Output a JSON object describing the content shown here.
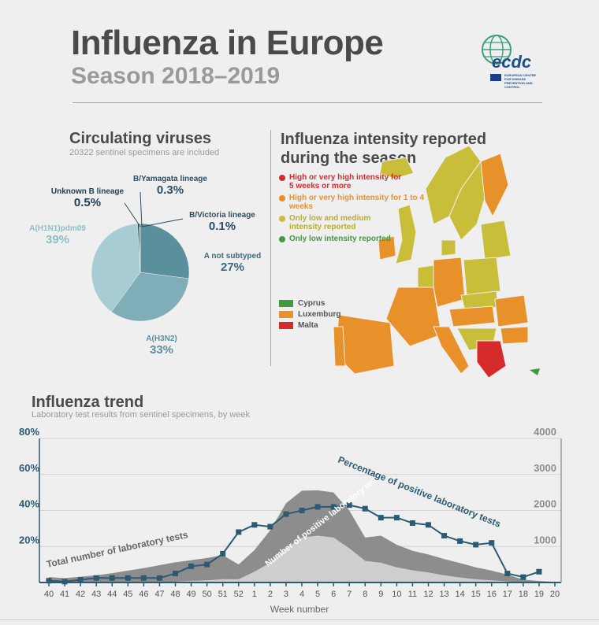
{
  "header": {
    "title": "Influenza in Europe",
    "subtitle": "Season 2018–2019",
    "logo_text": "ecdc",
    "logo_caption": "EUROPEAN CENTRE FOR DISEASE PREVENTION AND CONTROL"
  },
  "viruses": {
    "title": "Circulating viruses",
    "note": "20322 sentinel specimens are included",
    "slices": [
      {
        "name": "A not subtyped",
        "value": "27%",
        "color": "#5a8f9c"
      },
      {
        "name": "A(H3N2)",
        "value": "33%",
        "color": "#7fadb8"
      },
      {
        "name": "A(H1N1)pdm09",
        "value": "39%",
        "color": "#a7ccd3"
      },
      {
        "name": "Unknown B lineage",
        "value": "0.5%",
        "color": "#1e3e54"
      },
      {
        "name": "B/Yamagata lineage",
        "value": "0.3%",
        "color": "#2d5870"
      },
      {
        "name": "B/Victoria lineage",
        "value": "0.1%",
        "color": "#3b6a80"
      }
    ]
  },
  "intensity": {
    "title": "Influenza intensity reported during the season",
    "legend": [
      {
        "label": "High or very high intensity for 5 weeks or more",
        "color": "#d52b2b"
      },
      {
        "label": "High or very high intensity for 1 to 4 weeks",
        "color": "#e8912a"
      },
      {
        "label": "Only low and medium intensity reported",
        "color": "#c9be3a"
      },
      {
        "label": "Only low intensity reported",
        "color": "#3f9b3f"
      }
    ],
    "small_countries": [
      {
        "label": "Cyprus",
        "color": "#3f9b3f"
      },
      {
        "label": "Luxemburg",
        "color": "#e8912a"
      },
      {
        "label": "Malta",
        "color": "#d52b2b"
      }
    ]
  },
  "trend": {
    "title": "Influenza trend",
    "note": "Laboratory test results from sentinel specimens, by week",
    "xlabel": "Week number",
    "line_label": "Percentage of positive laboratory tests",
    "total_label": "Total number of laboratory tests",
    "positive_label": "Number of positive laboratory tests",
    "left_ticks": [
      "80%",
      "60%",
      "40%",
      "20%"
    ],
    "right_ticks": [
      "4000",
      "3000",
      "2000",
      "1000"
    ]
  },
  "chart_data": [
    {
      "type": "pie",
      "title": "Circulating viruses",
      "categories": [
        "A not subtyped",
        "A(H3N2)",
        "A(H1N1)pdm09",
        "Unknown B lineage",
        "B/Yamagata lineage",
        "B/Victoria lineage"
      ],
      "values": [
        27,
        33,
        39,
        0.5,
        0.3,
        0.1
      ]
    },
    {
      "type": "line",
      "title": "Influenza trend",
      "xlabel": "Week number",
      "categories": [
        "40",
        "41",
        "42",
        "43",
        "44",
        "45",
        "46",
        "47",
        "48",
        "49",
        "50",
        "51",
        "52",
        "1",
        "2",
        "3",
        "4",
        "5",
        "6",
        "7",
        "8",
        "9",
        "10",
        "11",
        "12",
        "13",
        "14",
        "15",
        "16",
        "17",
        "18",
        "19",
        "20"
      ],
      "ylim_left": [
        0,
        80
      ],
      "ylim_right": [
        0,
        4000
      ],
      "series": [
        {
          "name": "Percentage of positive laboratory tests",
          "axis": "left",
          "values": [
            1,
            0.5,
            1.5,
            2.5,
            2.5,
            2.5,
            2.5,
            2.5,
            5,
            9,
            10,
            16,
            28,
            32,
            31,
            38,
            40,
            42,
            42,
            43,
            41,
            36,
            36,
            33,
            32,
            26,
            23,
            21,
            22,
            5,
            3,
            6,
            null
          ]
        },
        {
          "name": "Total number of laboratory tests",
          "axis": "right",
          "values": [
            150,
            120,
            160,
            200,
            260,
            330,
            400,
            480,
            560,
            620,
            680,
            760,
            500,
            900,
            1450,
            2200,
            2550,
            2560,
            2500,
            2000,
            1250,
            1300,
            1050,
            880,
            780,
            650,
            540,
            420,
            330,
            220,
            80,
            40,
            20
          ]
        },
        {
          "name": "Number of positive laboratory tests",
          "axis": "right",
          "values": [
            0,
            0,
            0,
            0,
            5,
            8,
            10,
            15,
            25,
            45,
            60,
            90,
            90,
            300,
            550,
            950,
            1250,
            1300,
            1250,
            950,
            600,
            550,
            420,
            340,
            280,
            200,
            140,
            90,
            60,
            30,
            0,
            0,
            0
          ]
        }
      ]
    }
  ]
}
